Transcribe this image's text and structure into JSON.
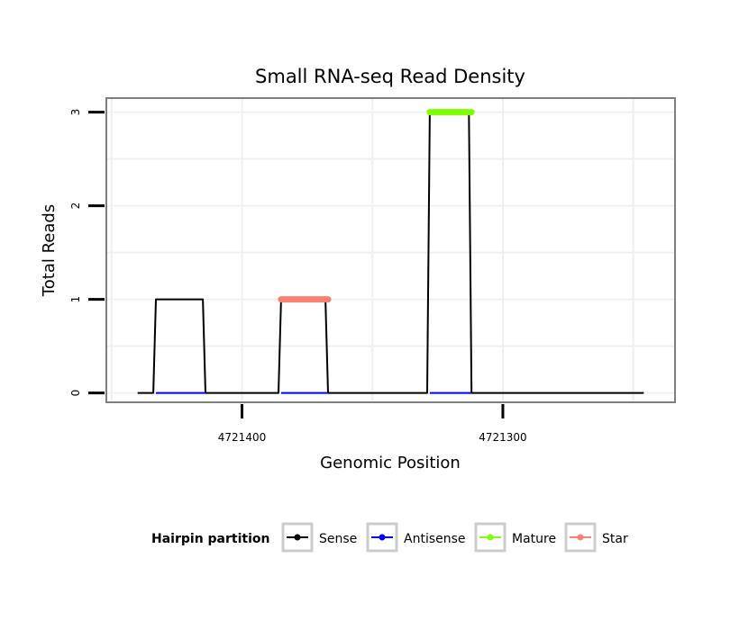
{
  "chart_data": {
    "type": "line",
    "title": "Small RNA-seq Read Density",
    "xlabel": "Genomic Position",
    "ylabel": "Total Reads",
    "x_reversed": true,
    "xlim": [
      4721452,
      4721234
    ],
    "ylim": [
      -0.1,
      3.15
    ],
    "x_ticks": [
      4721400,
      4721300
    ],
    "x_tick_labels": [
      "4721400",
      "4721300"
    ],
    "y_ticks": [
      0,
      1,
      2,
      3
    ],
    "y_tick_labels": [
      "0",
      "1",
      "2",
      "3"
    ],
    "grid": true,
    "legend": {
      "title": "Hairpin partition",
      "position": "bottom",
      "entries": [
        {
          "name": "Sense",
          "color": "#000000"
        },
        {
          "name": "Antisense",
          "color": "#0000ff"
        },
        {
          "name": "Mature",
          "color": "#7fff00"
        },
        {
          "name": "Star",
          "color": "#fa8072"
        }
      ]
    },
    "series": [
      {
        "name": "Sense",
        "color": "#000000",
        "points": [
          [
            4721440,
            0
          ],
          [
            4721434,
            0
          ],
          [
            4721433,
            1
          ],
          [
            4721415,
            1
          ],
          [
            4721414,
            0
          ],
          [
            4721386,
            0
          ],
          [
            4721385,
            1
          ],
          [
            4721368,
            1
          ],
          [
            4721367,
            0
          ],
          [
            4721329,
            0
          ],
          [
            4721328,
            3
          ],
          [
            4721313,
            3
          ],
          [
            4721312,
            0
          ],
          [
            4721246,
            0
          ]
        ]
      },
      {
        "name": "Antisense",
        "color": "#0000ff",
        "points": [
          [
            4721433,
            0
          ],
          [
            4721414,
            0
          ],
          null,
          [
            4721385,
            0
          ],
          [
            4721367,
            0
          ],
          null,
          [
            4721328,
            0
          ],
          [
            4721312,
            0
          ]
        ]
      },
      {
        "name": "Mature",
        "color": "#7fff00",
        "points": [
          [
            4721328,
            3
          ],
          [
            4721312,
            3
          ]
        ]
      },
      {
        "name": "Star",
        "color": "#fa8072",
        "points": [
          [
            4721385,
            1
          ],
          [
            4721367,
            1
          ]
        ]
      }
    ]
  }
}
